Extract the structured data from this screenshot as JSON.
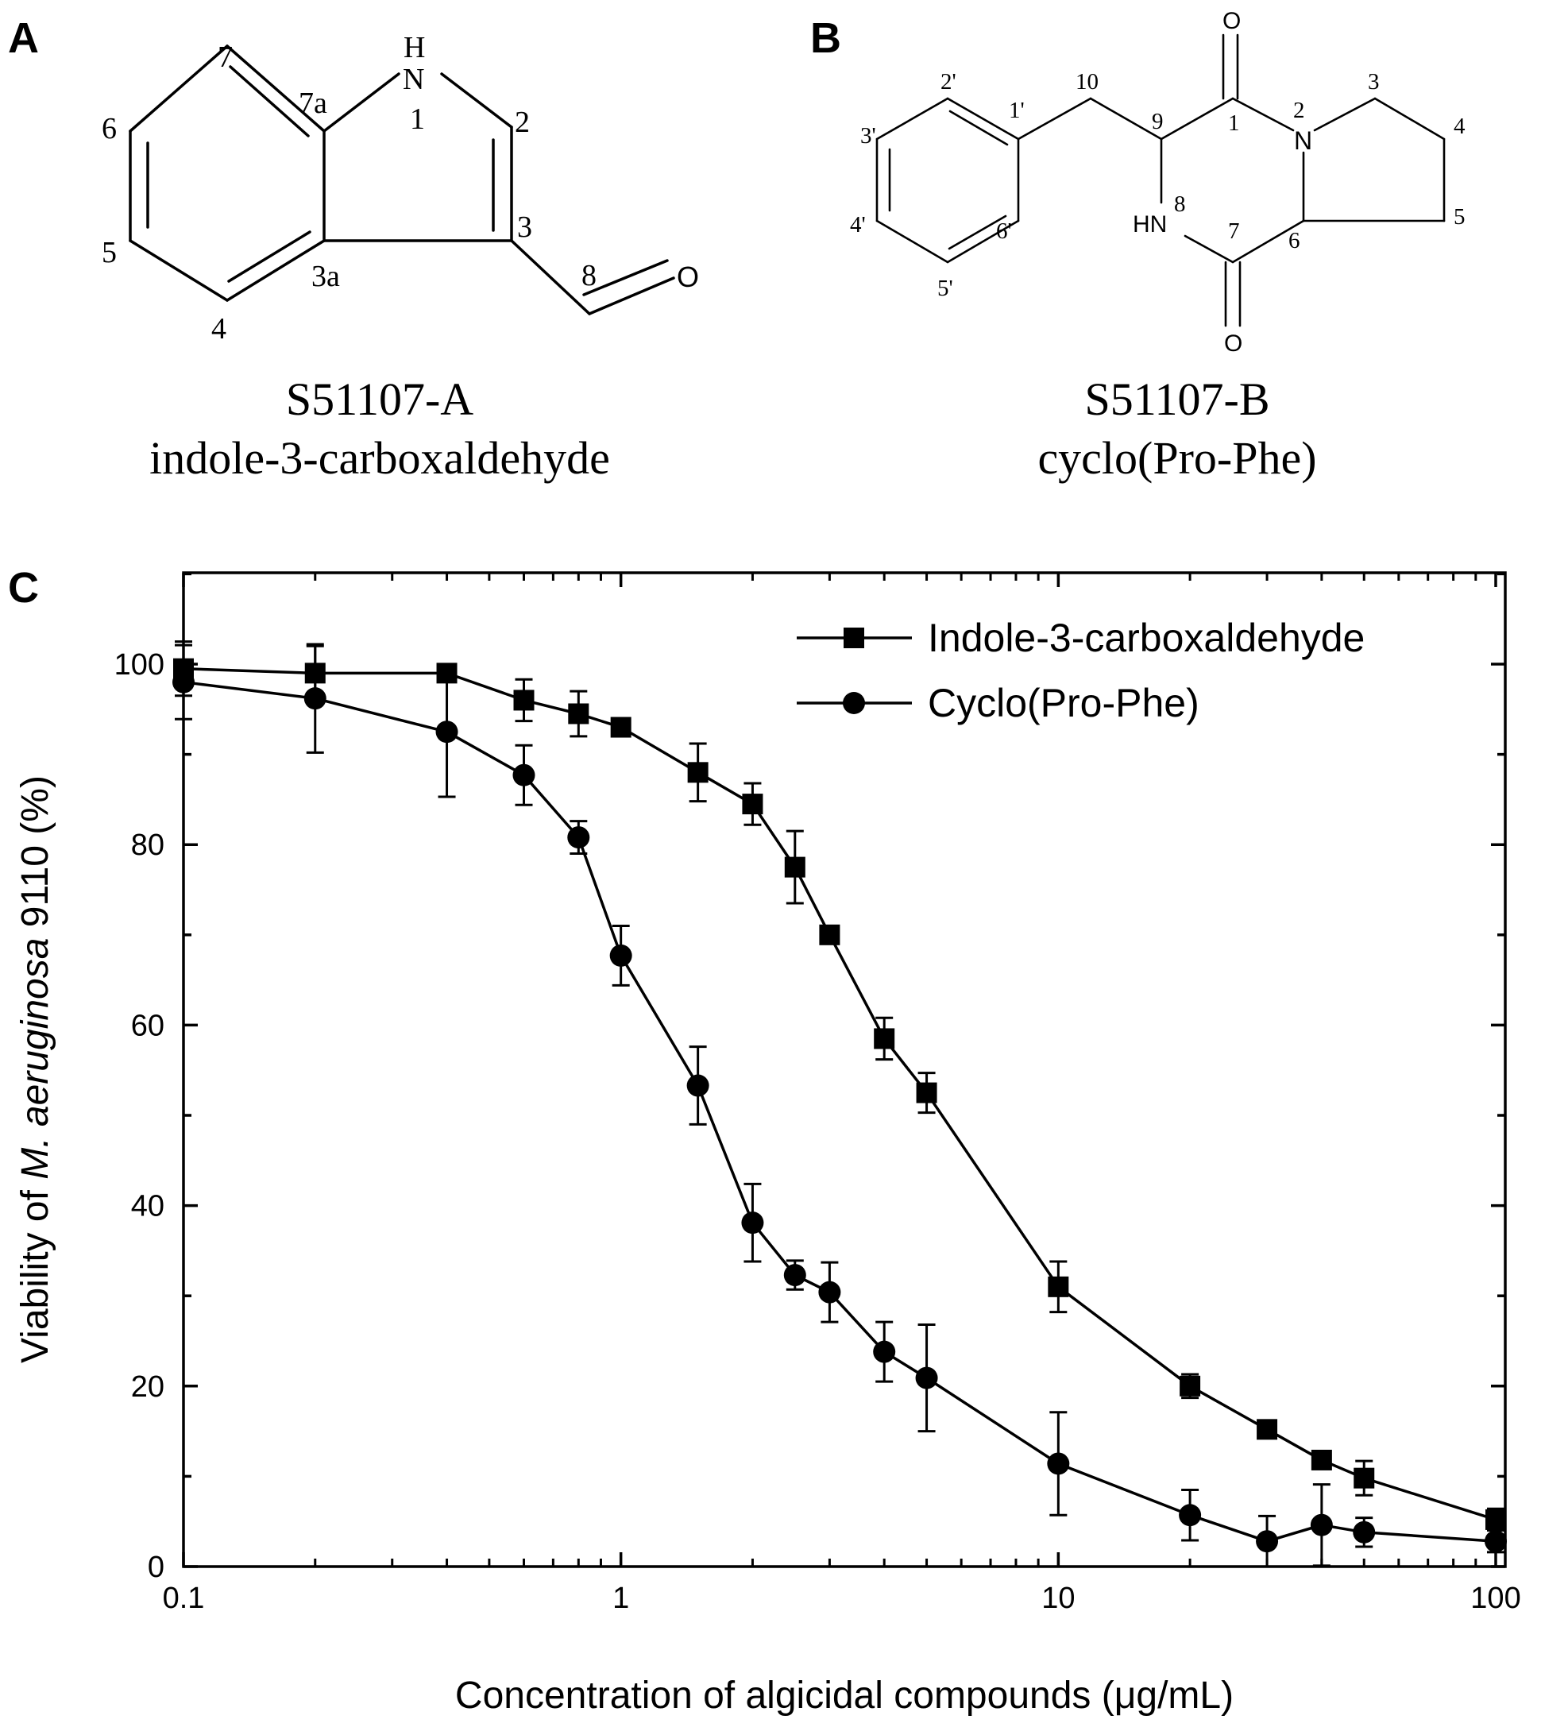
{
  "panel_a": {
    "letter": "A",
    "code": "S51107-A",
    "name": "indole-3-carboxaldehyde",
    "atoms": {
      "H": "H",
      "N": "N",
      "O": "O"
    },
    "numbers": {
      "n7": "7",
      "n7a": "7a",
      "n1": "1",
      "n2": "2",
      "n6": "6",
      "n3": "3",
      "n5": "5",
      "n3a": "3a",
      "n4": "4",
      "n8": "8"
    }
  },
  "panel_b": {
    "letter": "B",
    "code": "S51107-B",
    "name": "cyclo(Pro-Phe)",
    "atoms": {
      "O_top": "O",
      "O_bottom": "O",
      "N2": "N",
      "HN": "HN"
    },
    "numbers": {
      "n10": "10",
      "n9": "9",
      "n1": "1",
      "n2": "2",
      "n3": "3",
      "n4": "4",
      "n5": "5",
      "n6": "6",
      "n7": "7",
      "n8": "8",
      "p1": "1'",
      "p2": "2'",
      "p3": "3'",
      "p4": "4'",
      "p5": "5'",
      "p6": "6'"
    }
  },
  "panel_c": {
    "letter": "C"
  },
  "chart_data": {
    "type": "line",
    "x_scale": "log",
    "xlim": [
      0.1,
      100
    ],
    "ylim": [
      0,
      110
    ],
    "xticks": [
      0.1,
      1,
      10,
      100
    ],
    "xtick_labels": [
      "0.1",
      "1",
      "10",
      "100"
    ],
    "yticks": [
      0,
      20,
      40,
      60,
      80,
      100
    ],
    "ytick_labels": [
      "0",
      "20",
      "40",
      "60",
      "80",
      "100"
    ],
    "xlabel": "Concentration of algicidal compounds (μg/mL)",
    "ylabel": {
      "prefix": "Viability of ",
      "italic": "M. aeruginosa",
      "suffix": " 9110 (%)"
    },
    "legend_position": "top-right",
    "grid": false,
    "series": [
      {
        "name": "Indole-3-carboxaldehyde",
        "marker": "square",
        "x": [
          0.1,
          0.2,
          0.4,
          0.6,
          0.8,
          1,
          1.5,
          2,
          2.5,
          3,
          4,
          5,
          10,
          20,
          30,
          40,
          50,
          100
        ],
        "y": [
          99.5,
          99,
          99,
          96,
          94.5,
          93,
          88,
          84.5,
          77.5,
          70,
          58.5,
          52.5,
          31,
          20,
          15.2,
          11.8,
          9.8,
          5.2
        ],
        "err": [
          3,
          3,
          0.6,
          2.3,
          2.5,
          0.8,
          3.2,
          2.3,
          4,
          0.8,
          2.3,
          2.2,
          2.8,
          1.3,
          0.8,
          0.8,
          1.9,
          1.2
        ]
      },
      {
        "name": "Cyclo(Pro-Phe)",
        "marker": "circle",
        "x": [
          0.1,
          0.2,
          0.4,
          0.6,
          0.8,
          1,
          1.5,
          2,
          2.5,
          3,
          4,
          5,
          10,
          20,
          30,
          40,
          50,
          100
        ],
        "y": [
          98,
          96.2,
          92.5,
          87.7,
          80.8,
          67.7,
          53.3,
          38.1,
          32.3,
          30.4,
          23.8,
          20.9,
          11.4,
          5.7,
          2.8,
          4.6,
          3.8,
          2.8
        ],
        "err": [
          4.1,
          6,
          7.2,
          3.3,
          1.8,
          3.3,
          4.3,
          4.3,
          1.6,
          3.3,
          3.3,
          5.9,
          5.7,
          2.8,
          2.8,
          4.5,
          1.6,
          1.2
        ]
      }
    ]
  }
}
